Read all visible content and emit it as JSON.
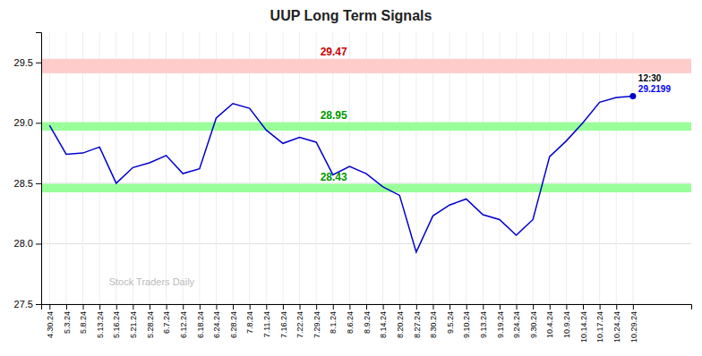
{
  "chart_data": {
    "type": "line",
    "title": "UUP Long Term Signals",
    "categories": [
      "4.30.24",
      "5.3.24",
      "5.8.24",
      "5.13.24",
      "5.16.24",
      "5.21.24",
      "5.28.24",
      "6.7.24",
      "6.12.24",
      "6.18.24",
      "6.24.24",
      "6.28.24",
      "7.8.24",
      "7.11.24",
      "7.16.24",
      "7.22.24",
      "7.29.24",
      "8.1.24",
      "8.6.24",
      "8.9.24",
      "8.14.24",
      "8.20.24",
      "8.27.24",
      "8.30.24",
      "9.5.24",
      "9.10.24",
      "9.13.24",
      "9.19.24",
      "9.24.24",
      "9.30.24",
      "10.4.24",
      "10.9.24",
      "10.14.24",
      "10.17.24",
      "10.24.24",
      "10.29.24"
    ],
    "values": [
      28.98,
      28.74,
      28.75,
      28.8,
      28.5,
      28.63,
      28.67,
      28.73,
      28.58,
      28.62,
      29.04,
      29.16,
      29.12,
      28.94,
      28.83,
      28.88,
      28.84,
      28.57,
      28.64,
      28.58,
      28.47,
      28.4,
      27.93,
      28.23,
      28.32,
      28.37,
      28.24,
      28.2,
      28.07,
      28.2,
      28.72,
      28.85,
      29.0,
      29.17,
      29.21,
      29.2199
    ],
    "color": "#0000cc",
    "ylim": [
      27.5,
      29.75
    ],
    "yticks": [
      27.5,
      {
        "value": 28.0,
        "label": "28.0"
      },
      28.5,
      {
        "value": 29.0,
        "label": "29.0"
      },
      29.5
    ],
    "grid": true,
    "bands": [
      {
        "y0": 29.41,
        "y1": 29.53,
        "color": "#ffcccc",
        "label": "29.47",
        "label_color": "#cc0000"
      },
      {
        "y0": 28.935,
        "y1": 29.005,
        "color": "#99ff99",
        "label": "28.95",
        "label_color": "#009900"
      },
      {
        "y0": 28.425,
        "y1": 28.495,
        "color": "#99ff99",
        "label": "28.43",
        "label_color": "#009900"
      }
    ],
    "annotations": [
      {
        "text": "12:30",
        "color": "#000000"
      },
      {
        "text": "29.2199",
        "color": "#0000ff"
      }
    ],
    "watermark": {
      "text": "Stock Traders Daily",
      "color": "#bbbbbb"
    }
  }
}
